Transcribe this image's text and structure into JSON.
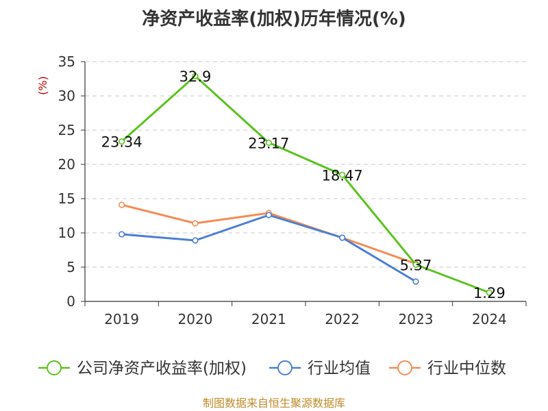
{
  "chart_data": {
    "type": "line",
    "title": "净资产收益率(加权)历年情况(%)",
    "ylabel": "(%)",
    "ylim": [
      0,
      35
    ],
    "yticks": [
      0,
      5,
      10,
      15,
      20,
      25,
      30,
      35
    ],
    "grid": true,
    "legend_position": "bottom",
    "categories": [
      "2019",
      "2020",
      "2021",
      "2022",
      "2023",
      "2024"
    ],
    "series": [
      {
        "name": "公司净资产收益率(加权)",
        "color": "#5ac31e",
        "values": [
          23.34,
          32.9,
          23.17,
          18.47,
          5.37,
          1.29
        ],
        "labels": [
          "23.34",
          "32.9",
          "23.17",
          "18.47",
          "5.37",
          "1.29"
        ]
      },
      {
        "name": "行业均值",
        "color": "#4a7fd6",
        "values": [
          9.8,
          8.9,
          12.6,
          9.3,
          2.9,
          null
        ]
      },
      {
        "name": "行业中位数",
        "color": "#f58c55",
        "values": [
          14.1,
          11.4,
          12.9,
          9.3,
          5.5,
          null
        ]
      }
    ]
  },
  "source": "制图数据来自恒生聚源数据库"
}
